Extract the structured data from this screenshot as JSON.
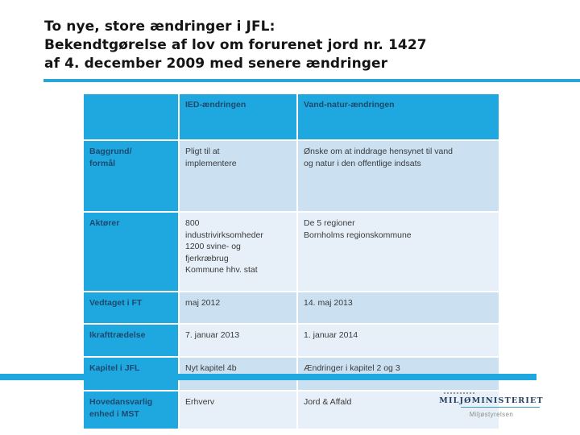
{
  "slide": {
    "title": "To nye, store ændringer i JFL:\nBekendtgørelse af lov om forurenet jord nr. 1427\naf 4. december 2009 med senere ændringer"
  },
  "table": {
    "columns": [
      "",
      "IED-ændringen",
      "Vand-natur-ændringen"
    ],
    "rows": [
      {
        "label": "Baggrund/\nformål",
        "ied": "Pligt til at\nimplementere",
        "vand": "Ønske om at inddrage hensynet til vand\nog natur i den offentlige indsats"
      },
      {
        "label": "Aktører",
        "ied": "800\nindustrivirksomheder\n1200 svine- og\nfjerkræbrug\nKommune hhv. stat",
        "vand": "De 5 regioner\nBornholms regionskommune"
      },
      {
        "label": "Vedtaget i FT",
        "ied": "maj 2012",
        "vand": "14. maj 2013"
      },
      {
        "label": "Ikrafttrædelse",
        "ied": "7. januar 2013",
        "vand": "1. januar 2014"
      },
      {
        "label": "Kapitel i JFL",
        "ied": "Nyt kapitel 4b",
        "vand": "Ændringer i kapitel 2 og 3"
      },
      {
        "label": "Hovedansvarlig\nenhed i MST",
        "ied": "Erhverv",
        "vand": "Jord & Affald"
      }
    ]
  },
  "footer": {
    "ministry": "MILJØMINISTERIET",
    "agency": "Miljøstyrelsen"
  },
  "colors": {
    "accent_cyan": "#1fa7e0",
    "rule_cyan": "#2aa4d9",
    "row_shade_dark": "#cbe1f2",
    "row_shade_light": "#e7f0f8",
    "header_text_navy": "#1c4a6e",
    "body_text": "#3a3a3a",
    "logo_navy": "#1f3b5e"
  }
}
